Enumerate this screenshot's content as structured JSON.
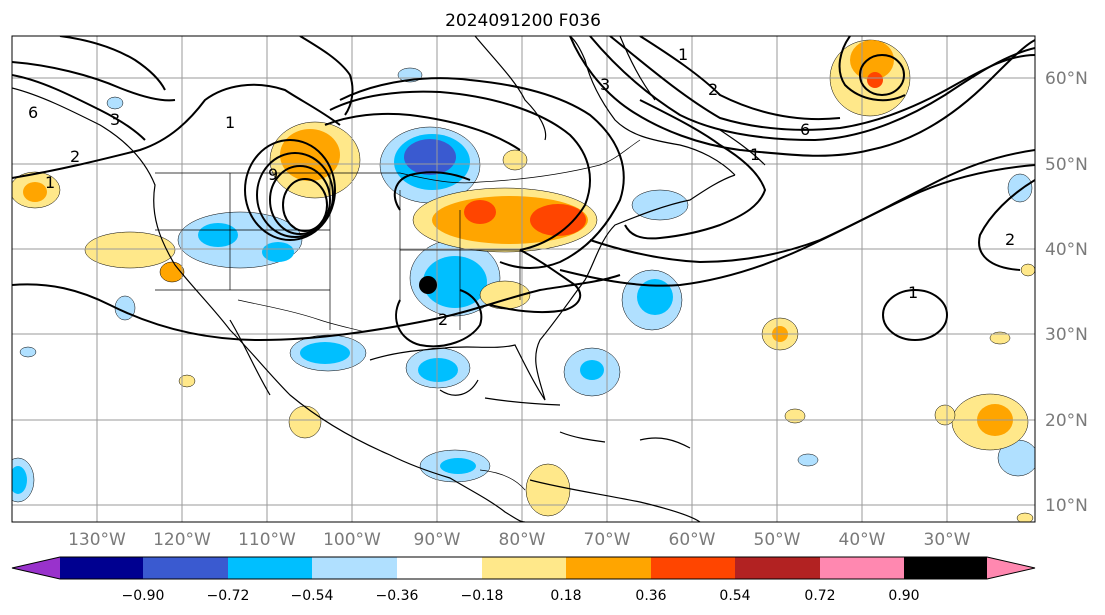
{
  "title": "2024091200 F036",
  "map": {
    "lon_ticks": [
      "130°W",
      "120°W",
      "110°W",
      "100°W",
      "90°W",
      "80°W",
      "70°W",
      "60°W",
      "50°W",
      "40°W",
      "30°W"
    ],
    "lat_ticks": [
      "60°N",
      "50°N",
      "40°N",
      "30°N",
      "20°N",
      "10°N"
    ],
    "contour_labels": [
      "1",
      "1",
      "1",
      "1",
      "1",
      "2",
      "2",
      "2",
      "2",
      "3",
      "3",
      "6",
      "6",
      "9"
    ],
    "marker": "location-dot"
  },
  "colorbar": {
    "ticks": [
      "−0.90",
      "−0.72",
      "−0.54",
      "−0.36",
      "−0.18",
      "0.18",
      "0.36",
      "0.54",
      "0.72",
      "0.90"
    ],
    "colors": [
      "#9932cc",
      "#000090",
      "#3a5ad0",
      "#00bfff",
      "#b0e0ff",
      "#ffffff",
      "#ffe88a",
      "#ffa500",
      "#ff4500",
      "#b22222",
      "#ff88b0"
    ]
  }
}
